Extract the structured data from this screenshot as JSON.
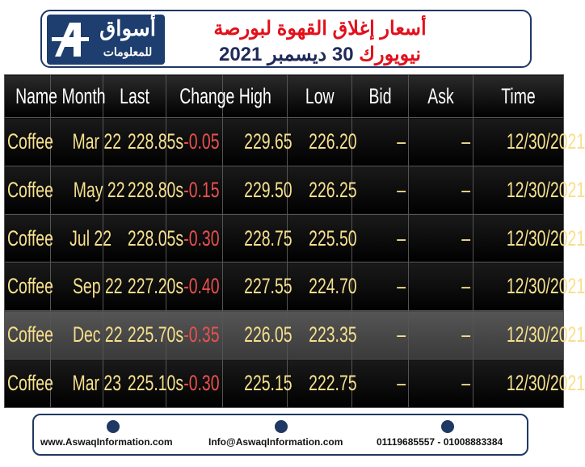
{
  "header": {
    "logo_top": "أسواق",
    "logo_bottom": "للمعلومات",
    "title_line1": "أسعار إغلاق القهوة لبورصة",
    "title_line2_red": "نيويورك",
    "title_line2_date": "30 ديسمبر 2021"
  },
  "table": {
    "columns": [
      "Name",
      "Month",
      "Last",
      "Change",
      "High",
      "Low",
      "Bid",
      "Ask",
      "Time"
    ],
    "rows": [
      [
        "Coffee",
        "Mar 22",
        "228.85s",
        "-0.05",
        "229.65",
        "226.20",
        "–",
        "–",
        "12/30/2021"
      ],
      [
        "Coffee",
        "May 22",
        "228.80s",
        "-0.15",
        "229.50",
        "226.25",
        "–",
        "–",
        "12/30/2021"
      ],
      [
        "Coffee",
        "Jul 22",
        "228.05s",
        "-0.30",
        "228.75",
        "225.50",
        "–",
        "–",
        "12/30/2021"
      ],
      [
        "Coffee",
        "Sep 22",
        "227.20s",
        "-0.40",
        "227.55",
        "224.70",
        "–",
        "–",
        "12/30/2021"
      ],
      [
        "Coffee",
        "Dec 22",
        "225.70s",
        "-0.35",
        "226.05",
        "223.35",
        "–",
        "–",
        "12/30/2021"
      ],
      [
        "Coffee",
        "Mar 23",
        "225.10s",
        "-0.30",
        "225.15",
        "222.75",
        "–",
        "–",
        "12/30/2021"
      ]
    ]
  },
  "footer": {
    "website": "www.AswaqInformation.com",
    "email": "Info@AswaqInformation.com",
    "phone": "01119685557 - 01008883384"
  }
}
